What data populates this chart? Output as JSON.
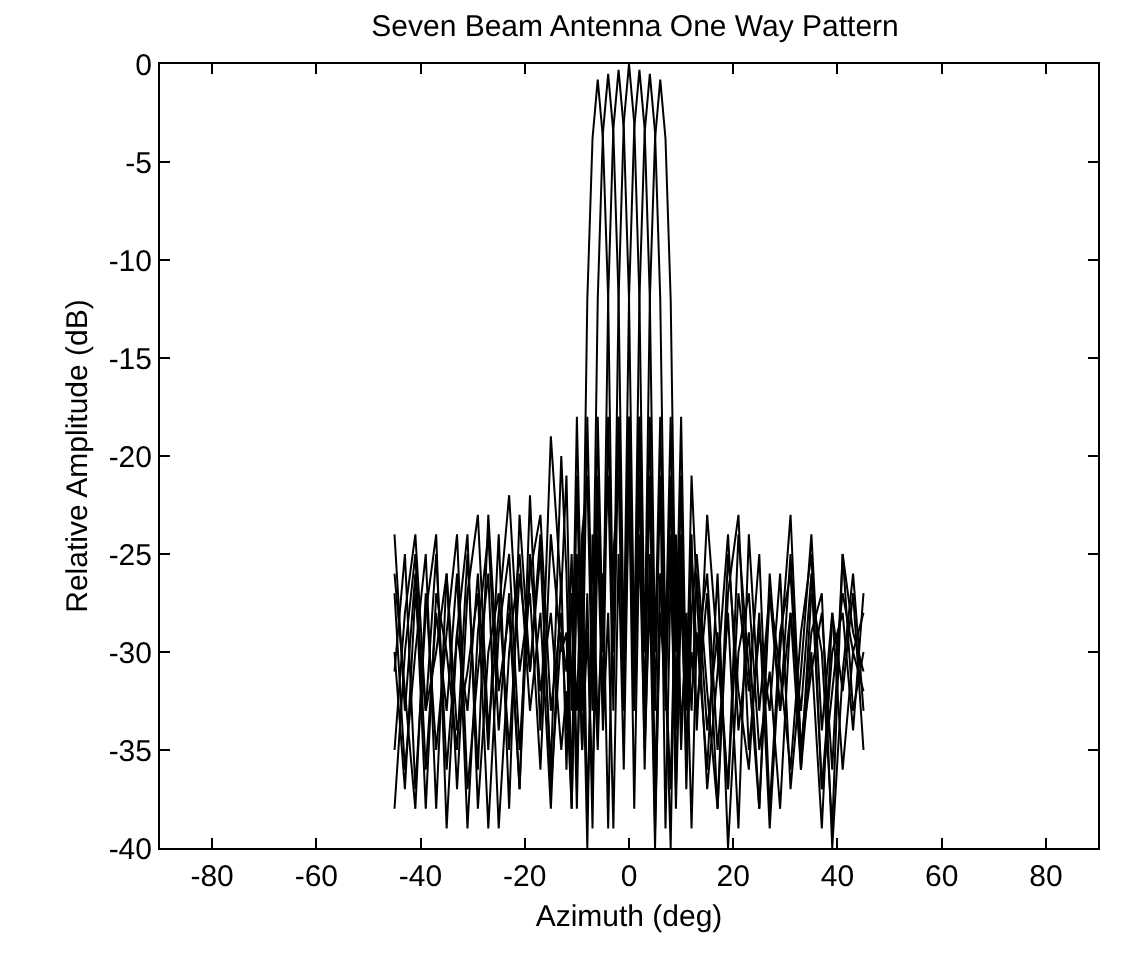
{
  "chart_data": {
    "type": "line",
    "title": "Seven Beam Antenna One Way Pattern",
    "xlabel": "Azimuth (deg)",
    "ylabel": "Relative Amplitude (dB)",
    "x": [
      -45,
      -43,
      -41,
      -39,
      -37,
      -35,
      -33,
      -31,
      -29,
      -27,
      -25,
      -23,
      -21,
      -19,
      -17,
      -15,
      -13,
      -12,
      -11,
      -10,
      -9,
      -8,
      -7,
      -6,
      -5,
      -4,
      -3,
      -2,
      -1,
      0,
      1,
      2,
      3,
      4,
      5,
      6,
      7,
      8,
      9,
      10,
      11,
      12,
      13,
      15,
      17,
      19,
      21,
      23,
      25,
      27,
      29,
      31,
      33,
      35,
      37,
      39,
      41,
      43,
      45
    ],
    "xlim": [
      -90,
      90
    ],
    "xticks": [
      -80,
      -60,
      -40,
      -20,
      0,
      20,
      40,
      60,
      80
    ],
    "ylim": [
      -40,
      0
    ],
    "yticks": [
      -40,
      -35,
      -30,
      -25,
      -20,
      -15,
      -10,
      -5,
      0
    ],
    "series": [
      {
        "color": "#000000",
        "values": [
          -24,
          -33,
          -26,
          -38,
          -27,
          -30,
          -35,
          -25,
          -36,
          -23,
          -32,
          -28,
          -37,
          -22,
          -34,
          -19,
          -27,
          -21,
          -33,
          -18,
          -30,
          -12,
          -3.8,
          -0.8,
          -3.8,
          -12,
          -30,
          -18,
          -33,
          -21,
          -38,
          -24,
          -35,
          -27,
          -40,
          -26,
          -31,
          -37,
          -25,
          -34,
          -29,
          -39,
          -29,
          -36,
          -26,
          -40,
          -30,
          -27,
          -35,
          -31,
          -38,
          -28,
          -33,
          -26,
          -37,
          -30,
          -28,
          -34,
          -27
        ]
      },
      {
        "color": "#000000",
        "values": [
          -31,
          -25,
          -37,
          -28,
          -24,
          -39,
          -29,
          -33,
          -26,
          -35,
          -24,
          -38,
          -23,
          -31,
          -25,
          -36,
          -20,
          -26,
          -37,
          -21,
          -33,
          -18,
          -30,
          -12,
          -3.5,
          -0.5,
          -3.5,
          -12,
          -30,
          -18,
          -33,
          -21,
          -36,
          -25,
          -39,
          -28,
          -32,
          -24,
          -38,
          -27,
          -35,
          -30,
          -33,
          -27,
          -38,
          -25,
          -32,
          -36,
          -28,
          -39,
          -30,
          -23,
          -35,
          -29,
          -27,
          -40,
          -31,
          -26,
          -33
        ]
      },
      {
        "color": "#000000",
        "values": [
          -27,
          -36,
          -30,
          -25,
          -38,
          -26,
          -34,
          -31,
          -27,
          -39,
          -29,
          -25,
          -35,
          -26,
          -23,
          -33,
          -28,
          -34,
          -27,
          -38,
          -24,
          -21,
          -33,
          -18,
          -30,
          -12,
          -3.3,
          -0.3,
          -3.3,
          -12,
          -30,
          -18,
          -33,
          -21,
          -37,
          -26,
          -31,
          -40,
          -24,
          -35,
          -28,
          -33,
          -26,
          -34,
          -29,
          -37,
          -24,
          -31,
          -38,
          -27,
          -33,
          -25,
          -36,
          -30,
          -39,
          -28,
          -32,
          -27,
          -35
        ]
      },
      {
        "color": "#000000",
        "values": [
          -35,
          -28,
          -24,
          -33,
          -30,
          -26,
          -37,
          -27,
          -23,
          -34,
          -28,
          -22,
          -31,
          -27,
          -36,
          -24,
          -30,
          -29,
          -38,
          -25,
          -35,
          -27,
          -39,
          -21,
          -33,
          -18,
          -30,
          -12,
          -3,
          0,
          -3,
          -12,
          -30,
          -18,
          -33,
          -21,
          -39,
          -26,
          -34,
          -24,
          -37,
          -28,
          -25,
          -32,
          -38,
          -27,
          -23,
          -35,
          -29,
          -33,
          -26,
          -37,
          -31,
          -24,
          -34,
          -28,
          -36,
          -30,
          -32
        ]
      },
      {
        "color": "#000000",
        "values": [
          -30,
          -37,
          -27,
          -33,
          -25,
          -36,
          -29,
          -24,
          -38,
          -30,
          -27,
          -35,
          -26,
          -31,
          -24,
          -37,
          -29,
          -31,
          -25,
          -36,
          -28,
          -40,
          -24,
          -34,
          -27,
          -21,
          -33,
          -18,
          -30,
          -12,
          -3.3,
          -0.3,
          -3.3,
          -12,
          -30,
          -18,
          -33,
          -21,
          -37,
          -26,
          -32,
          -24,
          -34,
          -23,
          -30,
          -37,
          -27,
          -32,
          -25,
          -38,
          -29,
          -26,
          -35,
          -31,
          -28,
          -36,
          -25,
          -33,
          -30
        ]
      },
      {
        "color": "#000000",
        "values": [
          -26,
          -32,
          -38,
          -27,
          -35,
          -29,
          -24,
          -37,
          -31,
          -26,
          -39,
          -30,
          -25,
          -33,
          -28,
          -38,
          -26,
          -36,
          -27,
          -33,
          -24,
          -38,
          -29,
          -35,
          -26,
          -39,
          -25,
          -21,
          -33,
          -18,
          -30,
          -12,
          -3.5,
          -0.5,
          -3.5,
          -12,
          -30,
          -18,
          -33,
          -21,
          -36,
          -25,
          -30,
          -26,
          -35,
          -28,
          -39,
          -24,
          -33,
          -27,
          -31,
          -36,
          -29,
          -25,
          -37,
          -32,
          -27,
          -30,
          -28
        ]
      },
      {
        "color": "#000000",
        "values": [
          -38,
          -30,
          -25,
          -36,
          -28,
          -33,
          -26,
          -39,
          -29,
          -24,
          -34,
          -27,
          -37,
          -25,
          -32,
          -28,
          -35,
          -32,
          -38,
          -26,
          -35,
          -29,
          -37,
          -24,
          -34,
          -28,
          -39,
          -25,
          -36,
          -21,
          -33,
          -18,
          -30,
          -12,
          -3.8,
          -0.8,
          -3.8,
          -12,
          -30,
          -18,
          -33,
          -21,
          -27,
          -37,
          -31,
          -24,
          -34,
          -29,
          -38,
          -26,
          -33,
          -28,
          -36,
          -27,
          -30,
          -39,
          -25,
          -29,
          -31
        ]
      }
    ]
  }
}
